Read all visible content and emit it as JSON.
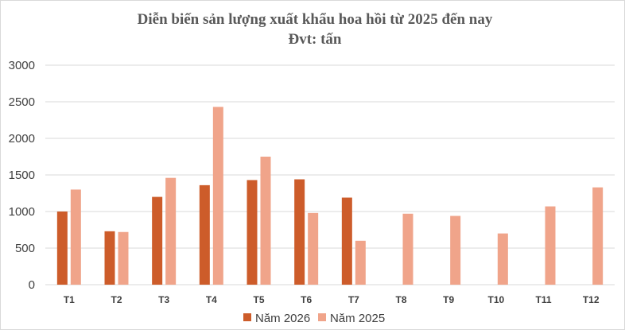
{
  "chart_data": {
    "type": "bar",
    "title": "Diễn biến sản lượng xuất khẩu hoa hồi từ 2025 đến nay",
    "subtitle": "Đvt: tấn",
    "categories": [
      "T1",
      "T2",
      "T3",
      "T4",
      "T5",
      "T6",
      "T7",
      "T8",
      "T9",
      "T10",
      "T11",
      "T12"
    ],
    "series": [
      {
        "name": "Năm 2026",
        "color": "#cd5c2a",
        "values": [
          1000,
          730,
          1200,
          1360,
          1430,
          1440,
          1190,
          null,
          null,
          null,
          null,
          null
        ]
      },
      {
        "name": "Năm 2025",
        "color": "#f0a48a",
        "values": [
          1300,
          720,
          1460,
          2430,
          1750,
          980,
          600,
          970,
          940,
          700,
          1070,
          1330
        ]
      }
    ],
    "yticks": [
      "0",
      "500",
      "1000",
      "1500",
      "2000",
      "2500",
      "3000"
    ],
    "ylim": [
      0,
      3000
    ],
    "grid": true,
    "legend": "bottom"
  }
}
